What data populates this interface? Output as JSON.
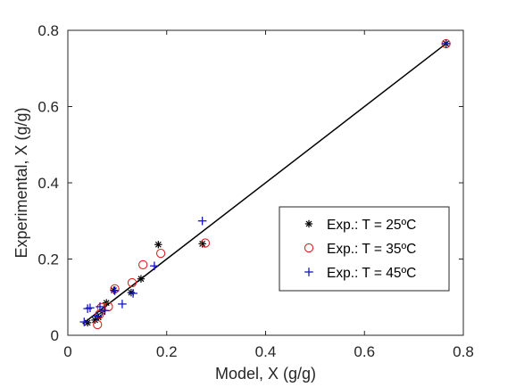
{
  "chart_data": {
    "type": "scatter",
    "xlabel": "Model, X (g/g)",
    "ylabel": "Experimental, X (g/g)",
    "xlim": [
      0,
      0.8
    ],
    "ylim": [
      0,
      0.8
    ],
    "xticks": [
      0,
      0.2,
      0.4,
      0.6,
      0.8
    ],
    "yticks": [
      0,
      0.2,
      0.4,
      0.6,
      0.8
    ],
    "xtick_labels": [
      "0",
      "0.2",
      "0.4",
      "0.6",
      "0.8"
    ],
    "ytick_labels": [
      "0",
      "0.2",
      "0.4",
      "0.6",
      "0.8"
    ],
    "grid": false,
    "legend_position": "lower-right",
    "reference_line": {
      "x": [
        0.03,
        0.765
      ],
      "y": [
        0.03,
        0.765
      ],
      "color": "#000000"
    },
    "series": [
      {
        "name": "Exp.: T = 25ºC",
        "marker": "asterisk",
        "color": "#000000",
        "points": [
          [
            0.765,
            0.765
          ],
          [
            0.272,
            0.24
          ],
          [
            0.183,
            0.238
          ],
          [
            0.148,
            0.148
          ],
          [
            0.128,
            0.112
          ],
          [
            0.093,
            0.118
          ],
          [
            0.078,
            0.085
          ],
          [
            0.069,
            0.062
          ],
          [
            0.062,
            0.047
          ],
          [
            0.055,
            0.04
          ],
          [
            0.04,
            0.033
          ]
        ]
      },
      {
        "name": "Exp.: T = 35ºC",
        "marker": "circle",
        "color": "#e02020",
        "points": [
          [
            0.765,
            0.765
          ],
          [
            0.278,
            0.242
          ],
          [
            0.188,
            0.215
          ],
          [
            0.152,
            0.185
          ],
          [
            0.13,
            0.138
          ],
          [
            0.095,
            0.122
          ],
          [
            0.082,
            0.075
          ],
          [
            0.068,
            0.073
          ],
          [
            0.064,
            0.055
          ],
          [
            0.06,
            0.028
          ]
        ]
      },
      {
        "name": "Exp.: T = 45ºC",
        "marker": "plus",
        "color": "#1515c8",
        "points": [
          [
            0.765,
            0.765
          ],
          [
            0.272,
            0.3
          ],
          [
            0.175,
            0.182
          ],
          [
            0.132,
            0.11
          ],
          [
            0.11,
            0.082
          ],
          [
            0.095,
            0.117
          ],
          [
            0.075,
            0.065
          ],
          [
            0.065,
            0.075
          ],
          [
            0.06,
            0.05
          ],
          [
            0.045,
            0.072
          ],
          [
            0.04,
            0.07
          ],
          [
            0.033,
            0.035
          ]
        ]
      }
    ]
  }
}
